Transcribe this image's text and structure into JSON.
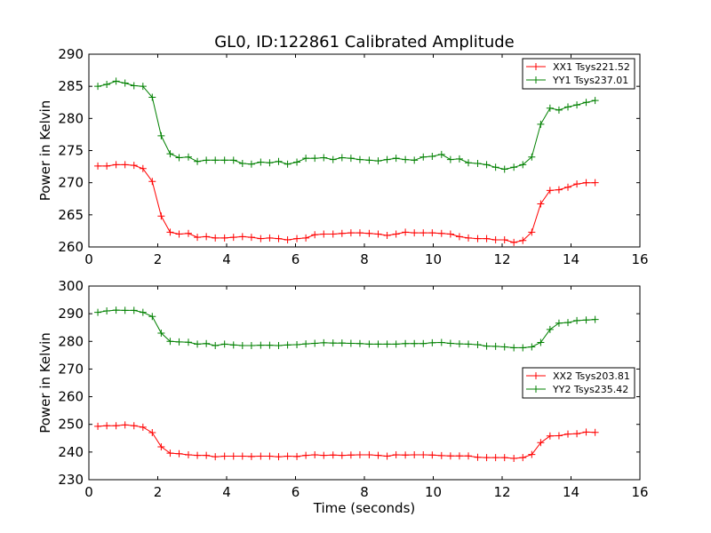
{
  "figure": {
    "title": "GL0, ID:122861 Calibrated Amplitude"
  },
  "chart_data": [
    {
      "type": "line",
      "xlabel": "",
      "ylabel": "Power in Kelvin",
      "xlim": [
        0,
        16
      ],
      "ylim": [
        260,
        290
      ],
      "xticks": [
        0,
        2,
        4,
        6,
        8,
        10,
        12,
        14,
        16
      ],
      "yticks": [
        260,
        265,
        270,
        275,
        280,
        285,
        290
      ],
      "legend_position": "top-right",
      "x": [
        0.26,
        0.52,
        0.79,
        1.05,
        1.31,
        1.57,
        1.84,
        2.1,
        2.36,
        2.62,
        2.89,
        3.15,
        3.41,
        3.67,
        3.94,
        4.2,
        4.46,
        4.72,
        4.99,
        5.25,
        5.51,
        5.77,
        6.04,
        6.3,
        6.56,
        6.82,
        7.09,
        7.35,
        7.61,
        7.87,
        8.14,
        8.4,
        8.66,
        8.92,
        9.19,
        9.45,
        9.71,
        9.97,
        10.24,
        10.5,
        10.76,
        11.02,
        11.29,
        11.55,
        11.81,
        12.07,
        12.34,
        12.6,
        12.86,
        13.12,
        13.39,
        13.65,
        13.91,
        14.17,
        14.44,
        14.7
      ],
      "series": [
        {
          "name": "XX1 Tsys221.52",
          "color": "#ff0000",
          "values": [
            272.6,
            272.6,
            272.8,
            272.8,
            272.7,
            272.2,
            270.2,
            264.8,
            262.3,
            262.0,
            262.1,
            261.5,
            261.6,
            261.4,
            261.4,
            261.5,
            261.6,
            261.5,
            261.3,
            261.4,
            261.3,
            261.1,
            261.3,
            261.4,
            261.9,
            262.0,
            262.0,
            262.1,
            262.2,
            262.2,
            262.1,
            262.0,
            261.8,
            262.0,
            262.3,
            262.2,
            262.2,
            262.2,
            262.1,
            262.0,
            261.6,
            261.4,
            261.3,
            261.3,
            261.1,
            261.1,
            260.7,
            261.0,
            262.3,
            266.7,
            268.8,
            268.9,
            269.3,
            269.8,
            270.0,
            270.0
          ]
        },
        {
          "name": "YY1 Tsys237.01",
          "color": "#008000",
          "values": [
            285.0,
            285.3,
            285.8,
            285.5,
            285.1,
            285.0,
            283.3,
            277.3,
            274.5,
            273.9,
            274.0,
            273.3,
            273.5,
            273.5,
            273.5,
            273.5,
            273.0,
            272.9,
            273.2,
            273.1,
            273.3,
            272.9,
            273.2,
            273.8,
            273.8,
            273.9,
            273.6,
            273.9,
            273.8,
            273.6,
            273.5,
            273.4,
            273.6,
            273.8,
            273.6,
            273.5,
            274.0,
            274.1,
            274.4,
            273.6,
            273.7,
            273.1,
            273.0,
            272.8,
            272.4,
            272.1,
            272.4,
            272.8,
            274.0,
            279.1,
            281.6,
            281.3,
            281.8,
            282.1,
            282.5,
            282.8
          ]
        }
      ]
    },
    {
      "type": "line",
      "xlabel": "Time (seconds)",
      "ylabel": "Power in Kelvin",
      "xlim": [
        0,
        16
      ],
      "ylim": [
        230,
        300
      ],
      "xticks": [
        0,
        2,
        4,
        6,
        8,
        10,
        12,
        14,
        16
      ],
      "yticks": [
        230,
        240,
        250,
        260,
        270,
        280,
        290,
        300
      ],
      "legend_position": "center-right",
      "x": [
        0.26,
        0.52,
        0.79,
        1.05,
        1.31,
        1.57,
        1.84,
        2.1,
        2.36,
        2.62,
        2.89,
        3.15,
        3.41,
        3.67,
        3.94,
        4.2,
        4.46,
        4.72,
        4.99,
        5.25,
        5.51,
        5.77,
        6.04,
        6.3,
        6.56,
        6.82,
        7.09,
        7.35,
        7.61,
        7.87,
        8.14,
        8.4,
        8.66,
        8.92,
        9.19,
        9.45,
        9.71,
        9.97,
        10.24,
        10.5,
        10.76,
        11.02,
        11.29,
        11.55,
        11.81,
        12.07,
        12.34,
        12.6,
        12.86,
        13.12,
        13.39,
        13.65,
        13.91,
        14.17,
        14.44,
        14.7
      ],
      "series": [
        {
          "name": "XX2 Tsys203.81",
          "color": "#ff0000",
          "values": [
            249.3,
            249.5,
            249.5,
            249.8,
            249.5,
            249.0,
            247.0,
            241.9,
            239.6,
            239.4,
            239.0,
            238.8,
            238.8,
            238.3,
            238.5,
            238.5,
            238.5,
            238.4,
            238.5,
            238.5,
            238.3,
            238.5,
            238.4,
            238.8,
            239.0,
            238.8,
            238.9,
            238.8,
            238.9,
            239.0,
            239.0,
            238.8,
            238.5,
            239.0,
            238.9,
            239.0,
            239.0,
            238.9,
            238.7,
            238.6,
            238.6,
            238.6,
            238.1,
            238.0,
            238.0,
            238.0,
            237.7,
            238.0,
            239.1,
            243.4,
            245.8,
            245.9,
            246.5,
            246.6,
            247.2,
            247.1
          ]
        },
        {
          "name": "YY2 Tsys235.42",
          "color": "#008000",
          "values": [
            290.5,
            291.0,
            291.3,
            291.2,
            291.2,
            290.5,
            289.0,
            283.0,
            280.0,
            279.8,
            279.7,
            279.0,
            279.2,
            278.5,
            279.0,
            278.7,
            278.5,
            278.5,
            278.6,
            278.6,
            278.5,
            278.7,
            278.8,
            279.1,
            279.3,
            279.5,
            279.4,
            279.4,
            279.3,
            279.2,
            279.0,
            279.0,
            279.0,
            279.0,
            279.2,
            279.2,
            279.2,
            279.5,
            279.6,
            279.3,
            279.1,
            279.0,
            278.8,
            278.3,
            278.2,
            278.0,
            277.7,
            277.7,
            278.0,
            279.6,
            284.3,
            286.6,
            286.8,
            287.5,
            287.7,
            287.9
          ]
        }
      ]
    }
  ]
}
